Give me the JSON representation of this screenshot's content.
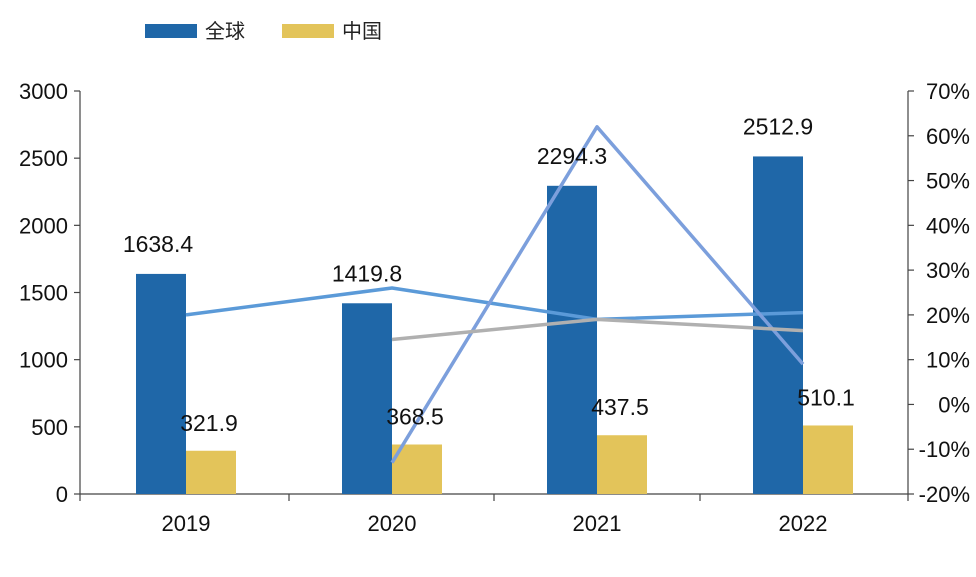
{
  "chart_data": {
    "type": "bar",
    "categories": [
      "2019",
      "2020",
      "2021",
      "2022"
    ],
    "series": [
      {
        "name": "全球",
        "axis": "left",
        "values": [
          1638.4,
          1419.8,
          2294.3,
          2512.9
        ],
        "labels": [
          "1638.4",
          "1419.8",
          "2294.3",
          "2512.9"
        ],
        "color": "#1f67a8"
      },
      {
        "name": "中国",
        "axis": "left",
        "values": [
          321.9,
          368.5,
          437.5,
          510.1
        ],
        "labels": [
          "321.9",
          "368.5",
          "437.5",
          "510.1"
        ],
        "color": "#e3c45a"
      }
    ],
    "lines": [
      {
        "axis": "right",
        "values": [
          20,
          26,
          19,
          20.5
        ],
        "color": "#5b9ad8"
      },
      {
        "axis": "right",
        "values": [
          null,
          -13,
          62,
          9
        ],
        "color": "#7c9fdc"
      },
      {
        "axis": "right",
        "values": [
          null,
          14.5,
          19,
          16.5
        ],
        "color": "#b0b0b0"
      }
    ],
    "ylim": [
      0,
      3000
    ],
    "yticks": [
      "0",
      "500",
      "1000",
      "1500",
      "2000",
      "2500",
      "3000"
    ],
    "y2lim": [
      -20,
      70
    ],
    "y2ticks": [
      "-20%",
      "-10%",
      "0%",
      "10%",
      "20%",
      "30%",
      "40%",
      "50%",
      "60%",
      "70%"
    ],
    "legend_position": "top-left",
    "grid": false
  }
}
